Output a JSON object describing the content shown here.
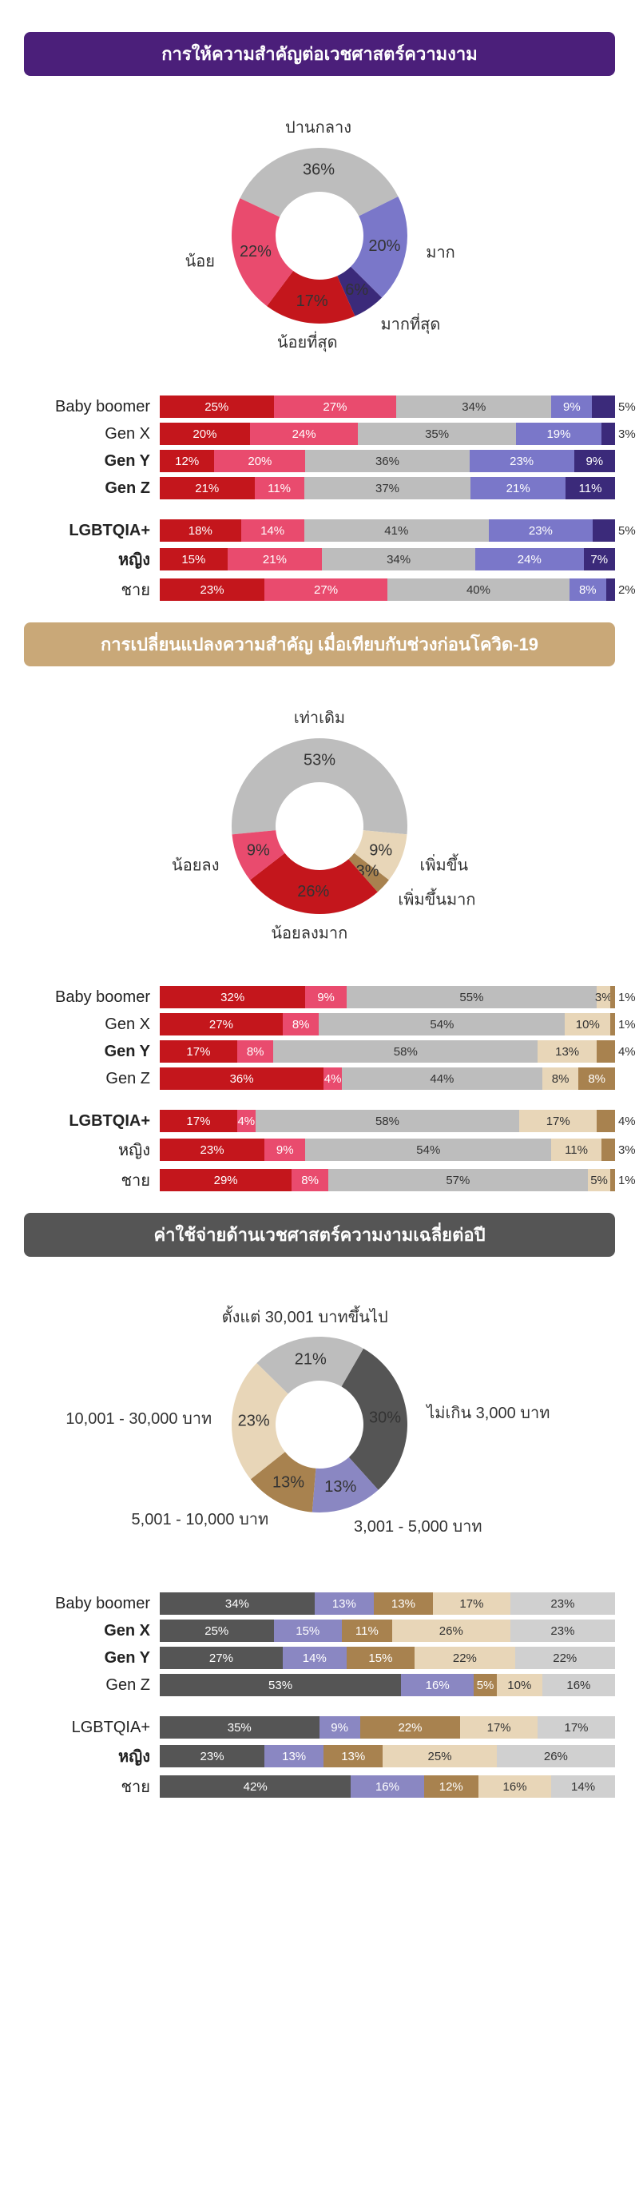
{
  "colors": {
    "header1": "#4b1f7a",
    "header2": "#c9a878",
    "header3": "#555555",
    "red_dark": "#c4161c",
    "red_light": "#e94b6e",
    "gray": "#bdbdbd",
    "purple_light": "#7a77c9",
    "purple_dark": "#3b2a7a",
    "beige_light": "#e8d6b8",
    "beige_dark": "#a8824f",
    "g_dark": "#555555",
    "g_mid": "#8a8a8a",
    "g_light": "#d0d0d0"
  },
  "section1": {
    "title": "การให้ความสำคัญต่อเวชศาสตร์ความงาม",
    "header_bg": "#4b1f7a",
    "donut": {
      "slices": [
        {
          "label": "ปานกลาง",
          "pct": 36,
          "color": "#bdbdbd",
          "label_pos": "top"
        },
        {
          "label": "มาก",
          "pct": 20,
          "color": "#7a77c9",
          "label_pos": "right"
        },
        {
          "label": "มากที่สุด",
          "pct": 6,
          "color": "#3b2a7a",
          "label_pos": "bottom-right"
        },
        {
          "label": "น้อยที่สุด",
          "pct": 17,
          "color": "#c4161c",
          "label_pos": "bottom-left"
        },
        {
          "label": "น้อย",
          "pct": 22,
          "color": "#e94b6e",
          "label_pos": "left"
        }
      ]
    },
    "bars_gen": [
      {
        "label": "Baby boomer",
        "bold": false,
        "segs": [
          {
            "v": 25,
            "c": "#c4161c"
          },
          {
            "v": 27,
            "c": "#e94b6e"
          },
          {
            "v": 34,
            "c": "#bdbdbd",
            "dark": true
          },
          {
            "v": 9,
            "c": "#7a77c9"
          },
          {
            "v": 5,
            "c": "#3b2a7a",
            "out": true
          }
        ]
      },
      {
        "label": "Gen X",
        "bold": false,
        "segs": [
          {
            "v": 20,
            "c": "#c4161c"
          },
          {
            "v": 24,
            "c": "#e94b6e"
          },
          {
            "v": 35,
            "c": "#bdbdbd",
            "dark": true
          },
          {
            "v": 19,
            "c": "#7a77c9"
          },
          {
            "v": 3,
            "c": "#3b2a7a",
            "out": true
          }
        ]
      },
      {
        "label": "Gen Y",
        "bold": true,
        "segs": [
          {
            "v": 12,
            "c": "#c4161c"
          },
          {
            "v": 20,
            "c": "#e94b6e"
          },
          {
            "v": 36,
            "c": "#bdbdbd",
            "dark": true
          },
          {
            "v": 23,
            "c": "#7a77c9"
          },
          {
            "v": 9,
            "c": "#3b2a7a"
          }
        ]
      },
      {
        "label": "Gen Z",
        "bold": true,
        "segs": [
          {
            "v": 21,
            "c": "#c4161c"
          },
          {
            "v": 11,
            "c": "#e94b6e"
          },
          {
            "v": 37,
            "c": "#bdbdbd",
            "dark": true
          },
          {
            "v": 21,
            "c": "#7a77c9"
          },
          {
            "v": 11,
            "c": "#3b2a7a"
          }
        ]
      }
    ],
    "bars_grp": [
      {
        "label": "LGBTQIA+",
        "bold": true,
        "segs": [
          {
            "v": 18,
            "c": "#c4161c"
          },
          {
            "v": 14,
            "c": "#e94b6e"
          },
          {
            "v": 41,
            "c": "#bdbdbd",
            "dark": true
          },
          {
            "v": 23,
            "c": "#7a77c9"
          },
          {
            "v": 5,
            "c": "#3b2a7a",
            "out": true
          }
        ]
      },
      {
        "label": "หญิง",
        "bold": true,
        "segs": [
          {
            "v": 15,
            "c": "#c4161c"
          },
          {
            "v": 21,
            "c": "#e94b6e"
          },
          {
            "v": 34,
            "c": "#bdbdbd",
            "dark": true
          },
          {
            "v": 24,
            "c": "#7a77c9"
          },
          {
            "v": 7,
            "c": "#3b2a7a"
          }
        ]
      },
      {
        "label": "ชาย",
        "bold": false,
        "segs": [
          {
            "v": 23,
            "c": "#c4161c"
          },
          {
            "v": 27,
            "c": "#e94b6e"
          },
          {
            "v": 40,
            "c": "#bdbdbd",
            "dark": true
          },
          {
            "v": 8,
            "c": "#7a77c9"
          },
          {
            "v": 2,
            "c": "#3b2a7a",
            "out": true
          }
        ]
      }
    ]
  },
  "section2": {
    "title": "การเปลี่ยนแปลงความสำคัญ เมื่อเทียบกับช่วงก่อนโควิด-19",
    "header_bg": "#c9a878",
    "donut": {
      "slices": [
        {
          "label": "เท่าเดิม",
          "pct": 53,
          "color": "#bdbdbd",
          "label_pos": "top"
        },
        {
          "label": "เพิ่มขึ้น",
          "pct": 9,
          "color": "#e8d6b8",
          "label_pos": "right"
        },
        {
          "label": "เพิ่มขึ้นมาก",
          "pct": 3,
          "color": "#a8824f",
          "label_pos": "bottom-right"
        },
        {
          "label": "น้อยลงมาก",
          "pct": 26,
          "color": "#c4161c",
          "label_pos": "bottom-left"
        },
        {
          "label": "น้อยลง",
          "pct": 9,
          "color": "#e94b6e",
          "label_pos": "left"
        }
      ]
    },
    "bars_gen": [
      {
        "label": "Baby boomer",
        "bold": false,
        "segs": [
          {
            "v": 32,
            "c": "#c4161c"
          },
          {
            "v": 9,
            "c": "#e94b6e"
          },
          {
            "v": 55,
            "c": "#bdbdbd",
            "dark": true
          },
          {
            "v": 3,
            "c": "#e8d6b8",
            "dark": true
          },
          {
            "v": 1,
            "c": "#a8824f",
            "out": true
          }
        ]
      },
      {
        "label": "Gen X",
        "bold": false,
        "segs": [
          {
            "v": 27,
            "c": "#c4161c"
          },
          {
            "v": 8,
            "c": "#e94b6e"
          },
          {
            "v": 54,
            "c": "#bdbdbd",
            "dark": true
          },
          {
            "v": 10,
            "c": "#e8d6b8",
            "dark": true
          },
          {
            "v": 1,
            "c": "#a8824f",
            "out": true
          }
        ]
      },
      {
        "label": "Gen Y",
        "bold": true,
        "segs": [
          {
            "v": 17,
            "c": "#c4161c"
          },
          {
            "v": 8,
            "c": "#e94b6e"
          },
          {
            "v": 58,
            "c": "#bdbdbd",
            "dark": true
          },
          {
            "v": 13,
            "c": "#e8d6b8",
            "dark": true
          },
          {
            "v": 4,
            "c": "#a8824f",
            "out": true
          }
        ]
      },
      {
        "label": "Gen Z",
        "bold": false,
        "segs": [
          {
            "v": 36,
            "c": "#c4161c"
          },
          {
            "v": 4,
            "c": "#e94b6e"
          },
          {
            "v": 44,
            "c": "#bdbdbd",
            "dark": true
          },
          {
            "v": 8,
            "c": "#e8d6b8",
            "dark": true
          },
          {
            "v": 8,
            "c": "#a8824f"
          }
        ]
      }
    ],
    "bars_grp": [
      {
        "label": "LGBTQIA+",
        "bold": true,
        "segs": [
          {
            "v": 17,
            "c": "#c4161c"
          },
          {
            "v": 4,
            "c": "#e94b6e"
          },
          {
            "v": 58,
            "c": "#bdbdbd",
            "dark": true
          },
          {
            "v": 17,
            "c": "#e8d6b8",
            "dark": true
          },
          {
            "v": 4,
            "c": "#a8824f",
            "out": true
          }
        ]
      },
      {
        "label": "หญิง",
        "bold": false,
        "segs": [
          {
            "v": 23,
            "c": "#c4161c"
          },
          {
            "v": 9,
            "c": "#e94b6e"
          },
          {
            "v": 54,
            "c": "#bdbdbd",
            "dark": true
          },
          {
            "v": 11,
            "c": "#e8d6b8",
            "dark": true
          },
          {
            "v": 3,
            "c": "#a8824f",
            "out": true
          }
        ]
      },
      {
        "label": "ชาย",
        "bold": false,
        "segs": [
          {
            "v": 29,
            "c": "#c4161c"
          },
          {
            "v": 8,
            "c": "#e94b6e"
          },
          {
            "v": 57,
            "c": "#bdbdbd",
            "dark": true
          },
          {
            "v": 5,
            "c": "#e8d6b8",
            "dark": true
          },
          {
            "v": 1,
            "c": "#a8824f",
            "out": true
          }
        ]
      }
    ]
  },
  "section3": {
    "title": "ค่าใช้จ่ายด้านเวชศาสตร์ความงามเฉลี่ยต่อปี",
    "header_bg": "#555555",
    "donut": {
      "slices": [
        {
          "label": "ไม่เกิน 3,000 บาท",
          "pct": 30,
          "color": "#555555",
          "label_pos": "right"
        },
        {
          "label": "3,001 - 5,000 บาท",
          "pct": 13,
          "color": "#8a87c2",
          "label_pos": "right-low"
        },
        {
          "label": "5,001 - 10,000 บาท",
          "pct": 13,
          "color": "#a8824f",
          "label_pos": "bottom"
        },
        {
          "label": "10,001 - 30,000 บาท",
          "pct": 23,
          "color": "#e8d6b8",
          "label_pos": "left-low"
        },
        {
          "label": "ตั้งแต่ 30,001 บาทขึ้นไป",
          "pct": 21,
          "color": "#bdbdbd",
          "label_pos": "left-high"
        }
      ]
    },
    "bars_gen": [
      {
        "label": "Baby boomer",
        "bold": false,
        "segs": [
          {
            "v": 34,
            "c": "#555555"
          },
          {
            "v": 13,
            "c": "#8a87c2"
          },
          {
            "v": 13,
            "c": "#a8824f"
          },
          {
            "v": 17,
            "c": "#e8d6b8",
            "dark": true
          },
          {
            "v": 23,
            "c": "#d0d0d0",
            "dark": true
          }
        ]
      },
      {
        "label": "Gen X",
        "bold": true,
        "segs": [
          {
            "v": 25,
            "c": "#555555"
          },
          {
            "v": 15,
            "c": "#8a87c2"
          },
          {
            "v": 11,
            "c": "#a8824f"
          },
          {
            "v": 26,
            "c": "#e8d6b8",
            "dark": true
          },
          {
            "v": 23,
            "c": "#d0d0d0",
            "dark": true
          }
        ]
      },
      {
        "label": "Gen Y",
        "bold": true,
        "segs": [
          {
            "v": 27,
            "c": "#555555"
          },
          {
            "v": 14,
            "c": "#8a87c2"
          },
          {
            "v": 15,
            "c": "#a8824f"
          },
          {
            "v": 22,
            "c": "#e8d6b8",
            "dark": true
          },
          {
            "v": 22,
            "c": "#d0d0d0",
            "dark": true
          }
        ]
      },
      {
        "label": "Gen Z",
        "bold": false,
        "segs": [
          {
            "v": 53,
            "c": "#555555"
          },
          {
            "v": 16,
            "c": "#8a87c2"
          },
          {
            "v": 5,
            "c": "#a8824f"
          },
          {
            "v": 10,
            "c": "#e8d6b8",
            "dark": true
          },
          {
            "v": 16,
            "c": "#d0d0d0",
            "dark": true
          }
        ]
      }
    ],
    "bars_grp": [
      {
        "label": "LGBTQIA+",
        "bold": false,
        "segs": [
          {
            "v": 35,
            "c": "#555555"
          },
          {
            "v": 9,
            "c": "#8a87c2"
          },
          {
            "v": 22,
            "c": "#a8824f"
          },
          {
            "v": 17,
            "c": "#e8d6b8",
            "dark": true
          },
          {
            "v": 17,
            "c": "#d0d0d0",
            "dark": true
          }
        ]
      },
      {
        "label": "หญิง",
        "bold": true,
        "segs": [
          {
            "v": 23,
            "c": "#555555"
          },
          {
            "v": 13,
            "c": "#8a87c2"
          },
          {
            "v": 13,
            "c": "#a8824f"
          },
          {
            "v": 25,
            "c": "#e8d6b8",
            "dark": true
          },
          {
            "v": 26,
            "c": "#d0d0d0",
            "dark": true
          }
        ]
      },
      {
        "label": "ชาย",
        "bold": false,
        "segs": [
          {
            "v": 42,
            "c": "#555555"
          },
          {
            "v": 16,
            "c": "#8a87c2"
          },
          {
            "v": 12,
            "c": "#a8824f"
          },
          {
            "v": 16,
            "c": "#e8d6b8",
            "dark": true
          },
          {
            "v": 14,
            "c": "#d0d0d0",
            "dark": true
          }
        ]
      }
    ]
  }
}
